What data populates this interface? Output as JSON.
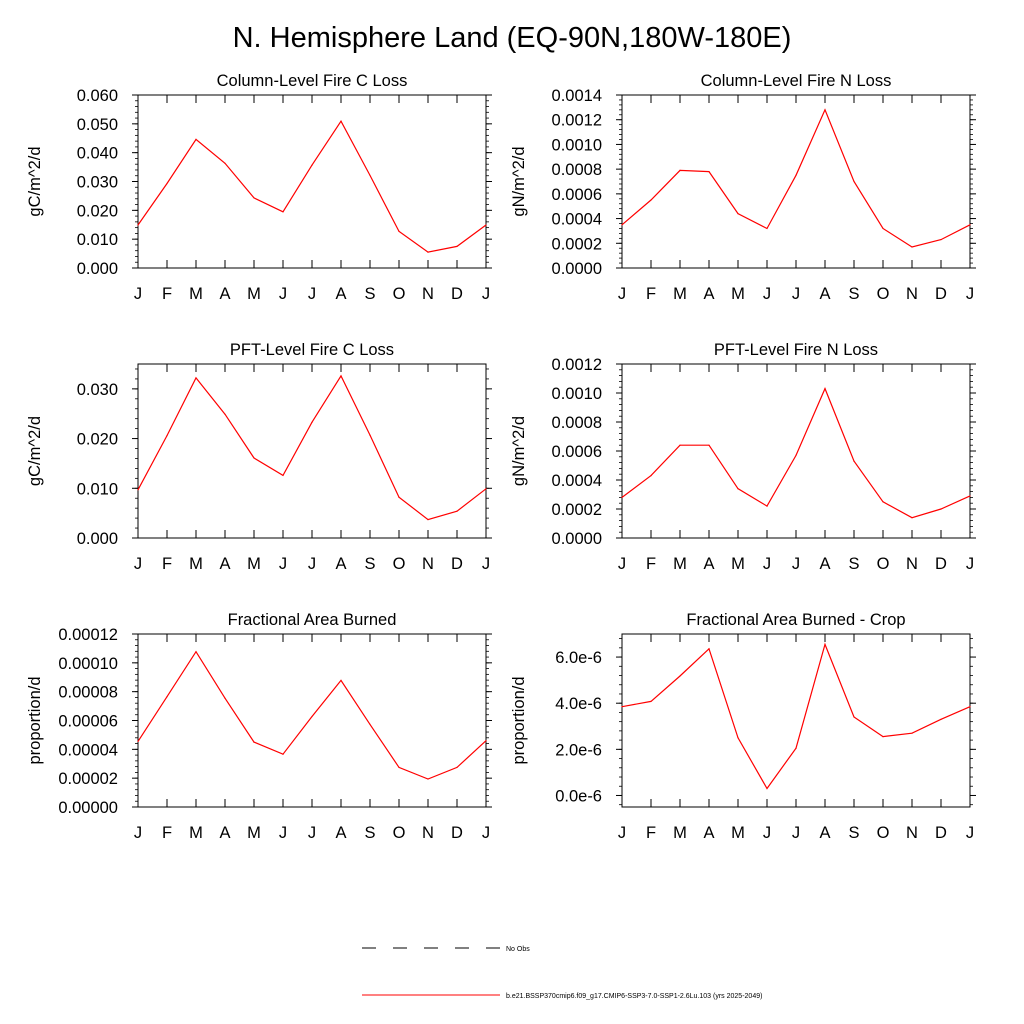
{
  "page": {
    "title": "N. Hemisphere Land (EQ-90N,180W-180E)",
    "months": [
      "J",
      "F",
      "M",
      "A",
      "M",
      "J",
      "J",
      "A",
      "S",
      "O",
      "N",
      "D",
      "J"
    ]
  },
  "colors": {
    "model_line": "#ff0000",
    "obs_line": "#000000",
    "axis": "#000000"
  },
  "chart_data": [
    {
      "type": "line",
      "title": "Column-Level Fire C Loss",
      "ylabel": "gC/m^2/d",
      "ylim": [
        0,
        0.06
      ],
      "yticks": [
        0,
        0.01,
        0.02,
        0.03,
        0.04,
        0.05,
        0.06
      ],
      "yticklabels": [
        "0.000",
        "0.010",
        "0.020",
        "0.030",
        "0.040",
        "0.050",
        "0.060"
      ],
      "values": [
        0.0149,
        0.0293,
        0.0446,
        0.0363,
        0.0243,
        0.0195,
        0.0357,
        0.0509,
        0.0321,
        0.0127,
        0.0055,
        0.0075,
        0.0149
      ]
    },
    {
      "type": "line",
      "title": "Column-Level Fire N Loss",
      "ylabel": "gN/m^2/d",
      "ylim": [
        0,
        0.0014
      ],
      "yticks": [
        0,
        0.0002,
        0.0004,
        0.0006,
        0.0008,
        0.001,
        0.0012,
        0.0014
      ],
      "yticklabels": [
        "0.0000",
        "0.0002",
        "0.0004",
        "0.0006",
        "0.0008",
        "0.0010",
        "0.0012",
        "0.0014"
      ],
      "values": [
        0.00035,
        0.00055,
        0.00079,
        0.00078,
        0.00044,
        0.00032,
        0.00075,
        0.00128,
        0.0007,
        0.00032,
        0.00017,
        0.00023,
        0.00035
      ]
    },
    {
      "type": "line",
      "title": "PFT-Level Fire C Loss",
      "ylabel": "gC/m^2/d",
      "ylim": [
        0,
        0.035
      ],
      "yticks": [
        0,
        0.01,
        0.02,
        0.03
      ],
      "yticklabels": [
        "0.000",
        "0.010",
        "0.020",
        "0.030"
      ],
      "values": [
        0.0097,
        0.0206,
        0.0322,
        0.0249,
        0.0161,
        0.0126,
        0.0233,
        0.0326,
        0.0207,
        0.0082,
        0.0037,
        0.0054,
        0.0099
      ]
    },
    {
      "type": "line",
      "title": "PFT-Level Fire N Loss",
      "ylabel": "gN/m^2/d",
      "ylim": [
        0,
        0.0012
      ],
      "yticks": [
        0,
        0.0002,
        0.0004,
        0.0006,
        0.0008,
        0.001,
        0.0012
      ],
      "yticklabels": [
        "0.0000",
        "0.0002",
        "0.0004",
        "0.0006",
        "0.0008",
        "0.0010",
        "0.0012"
      ],
      "values": [
        0.00028,
        0.00043,
        0.00064,
        0.00064,
        0.00034,
        0.00022,
        0.00057,
        0.00103,
        0.00053,
        0.00025,
        0.00014,
        0.0002,
        0.00029
      ]
    },
    {
      "type": "line",
      "title": "Fractional Area Burned",
      "ylabel": "proportion/d",
      "ylim": [
        0,
        0.00012
      ],
      "yticks": [
        0,
        2e-05,
        4e-05,
        6e-05,
        8e-05,
        0.0001,
        0.00012
      ],
      "yticklabels": [
        "0.00000",
        "0.00002",
        "0.00004",
        "0.00006",
        "0.00008",
        "0.00010",
        "0.00012"
      ],
      "values": [
        4.55e-05,
        7.65e-05,
        0.0001077,
        7.55e-05,
        4.5e-05,
        3.66e-05,
        6.28e-05,
        8.78e-05,
        5.73e-05,
        2.75e-05,
        1.94e-05,
        2.75e-05,
        4.6e-05
      ]
    },
    {
      "type": "line",
      "title": "Fractional Area Burned - Crop",
      "ylabel": "proportion/d",
      "ylim": [
        -5e-07,
        7e-06
      ],
      "yticks": [
        0,
        2e-06,
        4e-06,
        6e-06
      ],
      "yticklabels": [
        "0.0e-6",
        "2.0e-6",
        "4.0e-6",
        "6.0e-6"
      ],
      "values": [
        3.85e-06,
        4.08e-06,
        5.18e-06,
        6.36e-06,
        2.5e-06,
        3e-07,
        2.05e-06,
        6.55e-06,
        3.4e-06,
        2.55e-06,
        2.7e-06,
        3.3e-06,
        3.85e-06
      ]
    }
  ],
  "legend": {
    "obs_label": "No Obs",
    "model_label": "b.e21.BSSP370cmip6.f09_g17.CMIP6-SSP3-7.0-SSP1-2.6Lu.103 (yrs 2025-2049)"
  }
}
